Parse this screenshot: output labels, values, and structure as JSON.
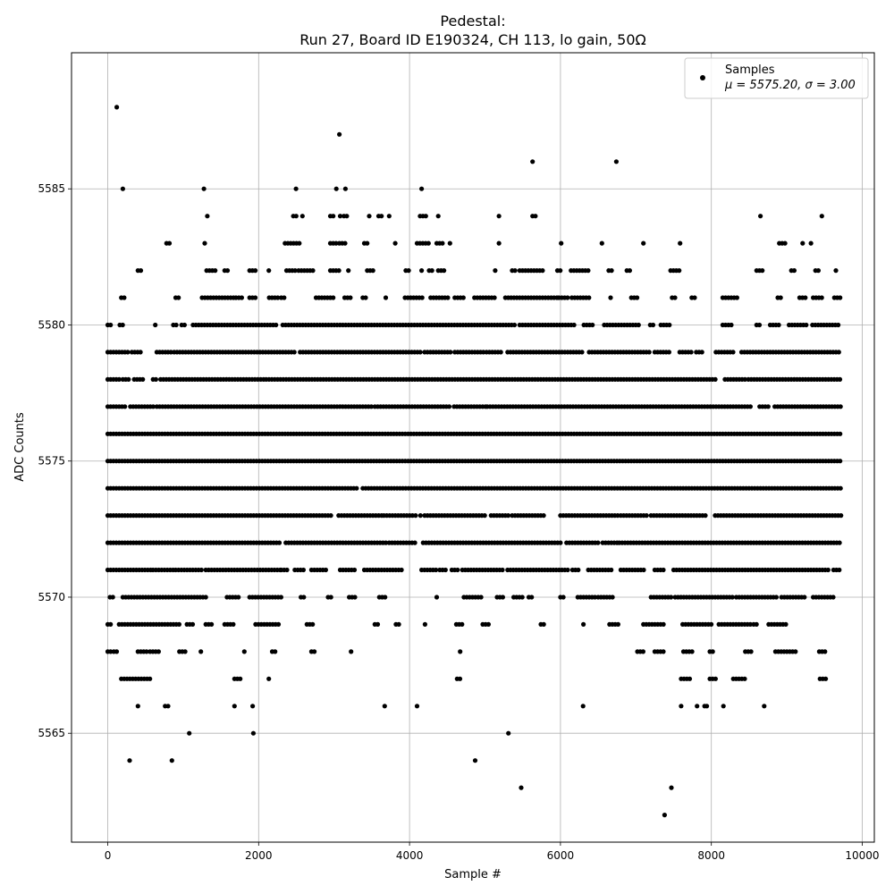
{
  "chart_data": {
    "type": "scatter",
    "title_line1": "Pedestal:",
    "title_line2": "Run 27, Board ID E190324, CH 113, lo gain, 50Ω",
    "xlabel": "Sample #",
    "ylabel": "ADC Counts",
    "xlim": [
      -480,
      10160
    ],
    "ylim": [
      5561,
      5590
    ],
    "xticks": [
      0,
      2000,
      4000,
      6000,
      8000,
      10000
    ],
    "yticks": [
      5565,
      5570,
      5575,
      5580,
      5585
    ],
    "grid": true,
    "legend_position": "top-right",
    "legend": {
      "label": "Samples",
      "stats_prefix": "μ = 5575.20, ",
      "stats_suffix": "σ = 3.00"
    },
    "marker_color": "#000000",
    "n_samples": 9720,
    "bands": [
      {
        "y": 5567,
        "x_ranges": [
          [
            180,
            560
          ],
          [
            1680,
            1760
          ],
          [
            2120,
            2150
          ],
          [
            4630,
            4700
          ],
          [
            7600,
            7750
          ],
          [
            7980,
            8060
          ],
          [
            8290,
            8470
          ],
          [
            9440,
            9540
          ]
        ]
      },
      {
        "y": 5568,
        "x_ranges": [
          [
            0,
            40
          ],
          [
            80,
            120
          ],
          [
            400,
            540
          ],
          [
            560,
            700
          ],
          [
            950,
            1050
          ],
          [
            1230,
            1240
          ],
          [
            1800,
            1820
          ],
          [
            2180,
            2220
          ],
          [
            2700,
            2740
          ],
          [
            3220,
            3230
          ],
          [
            4660,
            4680
          ],
          [
            7020,
            7100
          ],
          [
            7250,
            7400
          ],
          [
            7630,
            7770
          ],
          [
            7980,
            8050
          ],
          [
            8450,
            8550
          ],
          [
            8850,
            9120
          ],
          [
            9430,
            9520
          ]
        ]
      },
      {
        "y": 5569,
        "x_ranges": [
          [
            0,
            60
          ],
          [
            150,
            950
          ],
          [
            1050,
            1140
          ],
          [
            1300,
            1380
          ],
          [
            1550,
            1700
          ],
          [
            1960,
            2300
          ],
          [
            2640,
            2730
          ],
          [
            3540,
            3600
          ],
          [
            3820,
            3880
          ],
          [
            4190,
            4220
          ],
          [
            4620,
            4720
          ],
          [
            4970,
            5050
          ],
          [
            5740,
            5800
          ],
          [
            6290,
            6320
          ],
          [
            6650,
            6800
          ],
          [
            7100,
            7400
          ],
          [
            7620,
            8020
          ],
          [
            8100,
            8520
          ],
          [
            8560,
            8620
          ],
          [
            8760,
            9000
          ]
        ]
      },
      {
        "y": 5570,
        "x_ranges": [
          [
            30,
            100
          ],
          [
            200,
            1300
          ],
          [
            1580,
            1740
          ],
          [
            1880,
            2300
          ],
          [
            2560,
            2620
          ],
          [
            2920,
            2980
          ],
          [
            3200,
            3280
          ],
          [
            3600,
            3700
          ],
          [
            4350,
            4370
          ],
          [
            4720,
            4950
          ],
          [
            5160,
            5240
          ],
          [
            5380,
            5500
          ],
          [
            5580,
            5620
          ],
          [
            6000,
            6060
          ],
          [
            6230,
            6460
          ],
          [
            6500,
            6700
          ],
          [
            7200,
            7500
          ],
          [
            7520,
            8300
          ],
          [
            8330,
            8880
          ],
          [
            8930,
            9250
          ],
          [
            9350,
            9650
          ]
        ]
      },
      {
        "y": 5571,
        "x_ranges": [
          [
            0,
            600
          ],
          [
            600,
            900
          ],
          [
            900,
            1250
          ],
          [
            1300,
            2300
          ],
          [
            2300,
            2400
          ],
          [
            2480,
            2600
          ],
          [
            2700,
            2900
          ],
          [
            3080,
            3300
          ],
          [
            3400,
            3900
          ],
          [
            4160,
            4350
          ],
          [
            4400,
            4500
          ],
          [
            4560,
            4640
          ],
          [
            4700,
            5260
          ],
          [
            5300,
            6100
          ],
          [
            6160,
            6260
          ],
          [
            6370,
            6700
          ],
          [
            6800,
            7130
          ],
          [
            7250,
            7400
          ],
          [
            7500,
            9580
          ],
          [
            9620,
            9700
          ]
        ]
      },
      {
        "y": 5572,
        "x_ranges": [
          [
            0,
            2300
          ],
          [
            2360,
            2670
          ],
          [
            2700,
            3700
          ],
          [
            3730,
            4100
          ],
          [
            4180,
            6000
          ],
          [
            6080,
            6500
          ],
          [
            6560,
            6760
          ],
          [
            6780,
            9720
          ]
        ]
      },
      {
        "y": 5573,
        "x_ranges": [
          [
            0,
            2970
          ],
          [
            3060,
            3640
          ],
          [
            3660,
            4050
          ],
          [
            4070,
            4090
          ],
          [
            4130,
            4160
          ],
          [
            4200,
            5030
          ],
          [
            5080,
            5340
          ],
          [
            5360,
            5800
          ],
          [
            6000,
            6760
          ],
          [
            6800,
            7150
          ],
          [
            7200,
            7950
          ],
          [
            8050,
            9720
          ]
        ]
      },
      {
        "y": 5574,
        "x_ranges": [
          [
            0,
            3300
          ],
          [
            3380,
            9720
          ]
        ]
      },
      {
        "y": 5575,
        "x_ranges": [
          [
            0,
            9720
          ]
        ]
      },
      {
        "y": 5576,
        "x_ranges": [
          [
            0,
            9720
          ]
        ]
      },
      {
        "y": 5577,
        "x_ranges": [
          [
            0,
            260
          ],
          [
            300,
            610
          ],
          [
            650,
            3500
          ],
          [
            3540,
            4550
          ],
          [
            4590,
            5010
          ],
          [
            5030,
            8520
          ],
          [
            8640,
            8780
          ],
          [
            8840,
            9720
          ]
        ]
      },
      {
        "y": 5578,
        "x_ranges": [
          [
            0,
            180
          ],
          [
            200,
            280
          ],
          [
            350,
            480
          ],
          [
            600,
            650
          ],
          [
            700,
            2080
          ],
          [
            2100,
            8070
          ],
          [
            8180,
            8450
          ],
          [
            8490,
            9720
          ]
        ]
      },
      {
        "y": 5579,
        "x_ranges": [
          [
            0,
            300
          ],
          [
            320,
            450
          ],
          [
            650,
            770
          ],
          [
            800,
            840
          ],
          [
            880,
            2500
          ],
          [
            2550,
            4150
          ],
          [
            4200,
            4550
          ],
          [
            4600,
            5000
          ],
          [
            5020,
            5220
          ],
          [
            5300,
            6320
          ],
          [
            6380,
            7200
          ],
          [
            7250,
            7450
          ],
          [
            7580,
            7750
          ],
          [
            7800,
            7900
          ],
          [
            8060,
            8320
          ],
          [
            8400,
            9720
          ]
        ]
      },
      {
        "y": 5580,
        "x_ranges": [
          [
            0,
            50
          ],
          [
            160,
            200
          ],
          [
            620,
            640
          ],
          [
            870,
            930
          ],
          [
            980,
            1050
          ],
          [
            1130,
            2250
          ],
          [
            2320,
            5400
          ],
          [
            5460,
            6200
          ],
          [
            6310,
            6430
          ],
          [
            6580,
            7050
          ],
          [
            7190,
            7230
          ],
          [
            7330,
            7450
          ],
          [
            8150,
            8270
          ],
          [
            8600,
            8650
          ],
          [
            8780,
            8900
          ],
          [
            9030,
            9270
          ],
          [
            9340,
            9700
          ]
        ]
      },
      {
        "y": 5581,
        "x_ranges": [
          [
            180,
            220
          ],
          [
            900,
            950
          ],
          [
            1250,
            1680
          ],
          [
            1700,
            1780
          ],
          [
            1880,
            1960
          ],
          [
            2140,
            2280
          ],
          [
            2300,
            2350
          ],
          [
            2760,
            3000
          ],
          [
            3140,
            3220
          ],
          [
            3380,
            3440
          ],
          [
            3670,
            3700
          ],
          [
            3940,
            4200
          ],
          [
            4280,
            4510
          ],
          [
            4600,
            4730
          ],
          [
            4860,
            5150
          ],
          [
            5270,
            5960
          ],
          [
            5980,
            6100
          ],
          [
            6150,
            6390
          ],
          [
            6650,
            6680
          ],
          [
            6940,
            7040
          ],
          [
            7480,
            7550
          ],
          [
            7740,
            7780
          ],
          [
            8150,
            8350
          ],
          [
            8880,
            8950
          ],
          [
            9170,
            9260
          ],
          [
            9350,
            9470
          ],
          [
            9630,
            9720
          ]
        ]
      },
      {
        "y": 5582,
        "x_ranges": [
          [
            400,
            440
          ],
          [
            1310,
            1460
          ],
          [
            1550,
            1600
          ],
          [
            1880,
            1970
          ],
          [
            2120,
            2150
          ],
          [
            2370,
            2500
          ],
          [
            2530,
            2740
          ],
          [
            2950,
            3090
          ],
          [
            3180,
            3200
          ],
          [
            3440,
            3530
          ],
          [
            3950,
            4000
          ],
          [
            4150,
            4170
          ],
          [
            4260,
            4320
          ],
          [
            4380,
            4470
          ],
          [
            5120,
            5150
          ],
          [
            5360,
            5420
          ],
          [
            5460,
            5780
          ],
          [
            5960,
            6020
          ],
          [
            6140,
            6400
          ],
          [
            6640,
            6700
          ],
          [
            6880,
            6920
          ],
          [
            7460,
            7600
          ],
          [
            8600,
            8700
          ],
          [
            9060,
            9100
          ],
          [
            9380,
            9420
          ],
          [
            9640,
            9660
          ]
        ]
      },
      {
        "y": 5583,
        "x_ranges": [
          [
            780,
            820
          ],
          [
            1270,
            1300
          ],
          [
            2350,
            2550
          ],
          [
            2950,
            3040
          ],
          [
            3070,
            3150
          ],
          [
            3400,
            3440
          ],
          [
            3800,
            3820
          ],
          [
            4100,
            4260
          ],
          [
            4360,
            4450
          ],
          [
            4520,
            4550
          ],
          [
            5170,
            5200
          ],
          [
            6000,
            6020
          ],
          [
            6540,
            6560
          ],
          [
            7090,
            7110
          ],
          [
            7570,
            7600
          ],
          [
            8900,
            8990
          ],
          [
            9200,
            9220
          ],
          [
            9310,
            9330
          ]
        ]
      },
      {
        "y": 5584,
        "x_ranges": [
          [
            1310,
            1330
          ],
          [
            2460,
            2510
          ],
          [
            2570,
            2590
          ],
          [
            2950,
            3000
          ],
          [
            3070,
            3090
          ],
          [
            3130,
            3170
          ],
          [
            3450,
            3480
          ],
          [
            3590,
            3640
          ],
          [
            3720,
            3740
          ],
          [
            4140,
            4250
          ],
          [
            4370,
            4390
          ],
          [
            5170,
            5200
          ],
          [
            5630,
            5680
          ],
          [
            8640,
            8660
          ],
          [
            9450,
            9480
          ]
        ]
      },
      {
        "y": 5585,
        "x_ranges": [
          [
            190,
            210
          ],
          [
            1260,
            1290
          ],
          [
            2480,
            2510
          ],
          [
            3020,
            3040
          ],
          [
            3140,
            3160
          ],
          [
            4150,
            4170
          ]
        ]
      }
    ],
    "isolated_points": [
      [
        120,
        5588
      ],
      [
        3070,
        5587
      ],
      [
        5630,
        5586
      ],
      [
        6740,
        5586
      ],
      [
        400,
        5566
      ],
      [
        760,
        5566
      ],
      [
        800,
        5566
      ],
      [
        1680,
        5566
      ],
      [
        1920,
        5566
      ],
      [
        3670,
        5566
      ],
      [
        4100,
        5566
      ],
      [
        6300,
        5566
      ],
      [
        7600,
        5566
      ],
      [
        7810,
        5566
      ],
      [
        7910,
        5566
      ],
      [
        7940,
        5566
      ],
      [
        8160,
        5566
      ],
      [
        8700,
        5566
      ],
      [
        1080,
        5565
      ],
      [
        1930,
        5565
      ],
      [
        5310,
        5565
      ],
      [
        290,
        5564
      ],
      [
        850,
        5564
      ],
      [
        4870,
        5564
      ],
      [
        5480,
        5563
      ],
      [
        7470,
        5563
      ],
      [
        7380,
        5562
      ]
    ]
  }
}
